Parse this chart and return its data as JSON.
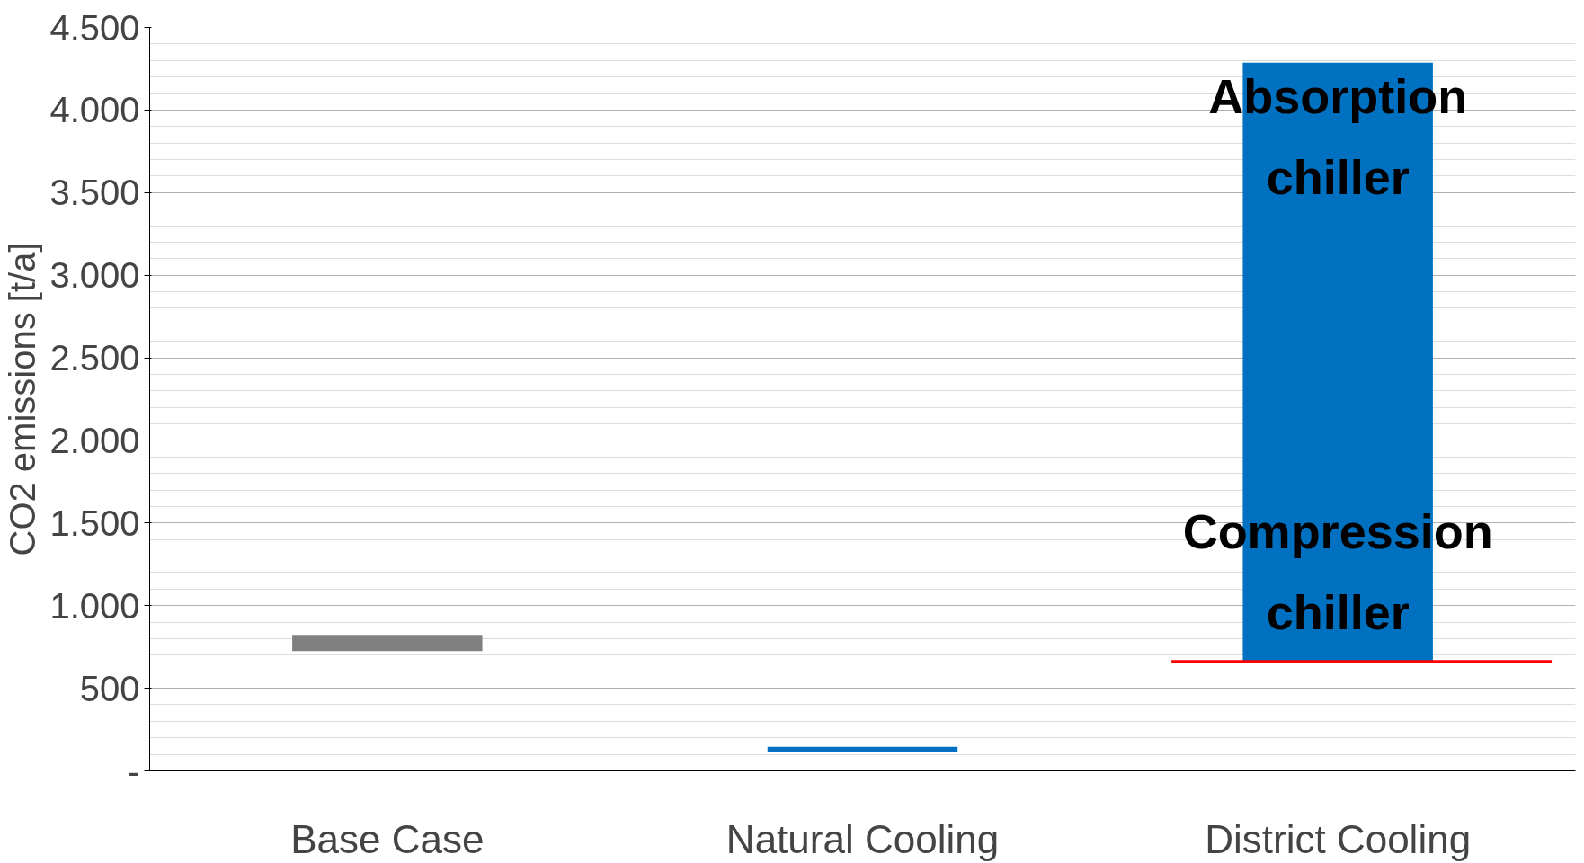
{
  "chart_data": {
    "type": "bar",
    "ylabel": "CO2 emissions [t/a]",
    "categories": [
      "Base Case",
      "Natural Cooling",
      "District Cooling"
    ],
    "base": [
      725,
      115,
      663
    ],
    "values": [
      98,
      30,
      3624
    ],
    "colors": [
      "#808080",
      "#0070c0",
      "#0070c0"
    ],
    "ylim": [
      0,
      4500
    ],
    "yticks": [
      {
        "value": 0,
        "label": "-"
      },
      {
        "value": 500,
        "label": "500"
      },
      {
        "value": 1000,
        "label": "1.000"
      },
      {
        "value": 1500,
        "label": "1.500"
      },
      {
        "value": 2000,
        "label": "2.000"
      },
      {
        "value": 2500,
        "label": "2.500"
      },
      {
        "value": 3000,
        "label": "3.000"
      },
      {
        "value": 3500,
        "label": "3.500"
      },
      {
        "value": 4000,
        "label": "4.000"
      },
      {
        "value": 4500,
        "label": "4.500"
      }
    ],
    "grid": "y",
    "ref_lines": [
      {
        "axis": "y",
        "value": 663,
        "color": "#ff0000"
      }
    ],
    "annotations": [
      "Absorption chiller",
      "Compression chiller"
    ]
  }
}
